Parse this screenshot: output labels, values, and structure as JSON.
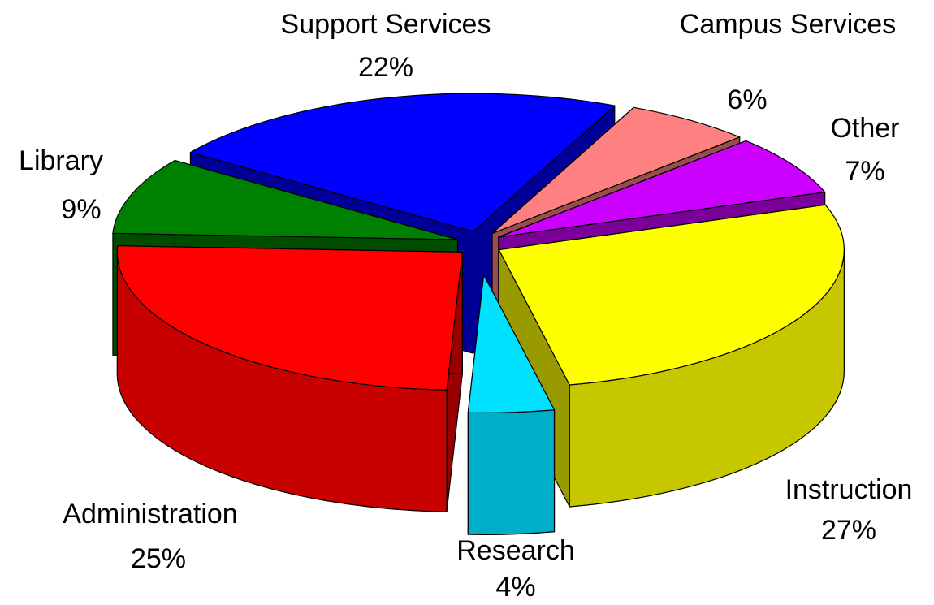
{
  "chart_data": {
    "type": "pie3d",
    "categories": [
      "Support Services",
      "Campus Services",
      "Other",
      "Instruction",
      "Research",
      "Administration",
      "Library"
    ],
    "values": [
      22,
      6,
      7,
      27,
      4,
      25,
      9
    ],
    "value_labels": [
      "22%",
      "6%",
      "7%",
      "27%",
      "4%",
      "25%",
      "9%"
    ],
    "colors": [
      "#0000ff",
      "#ff8080",
      "#cc00ff",
      "#ffff00",
      "#00e0ff",
      "#ff0000",
      "#008000"
    ]
  }
}
